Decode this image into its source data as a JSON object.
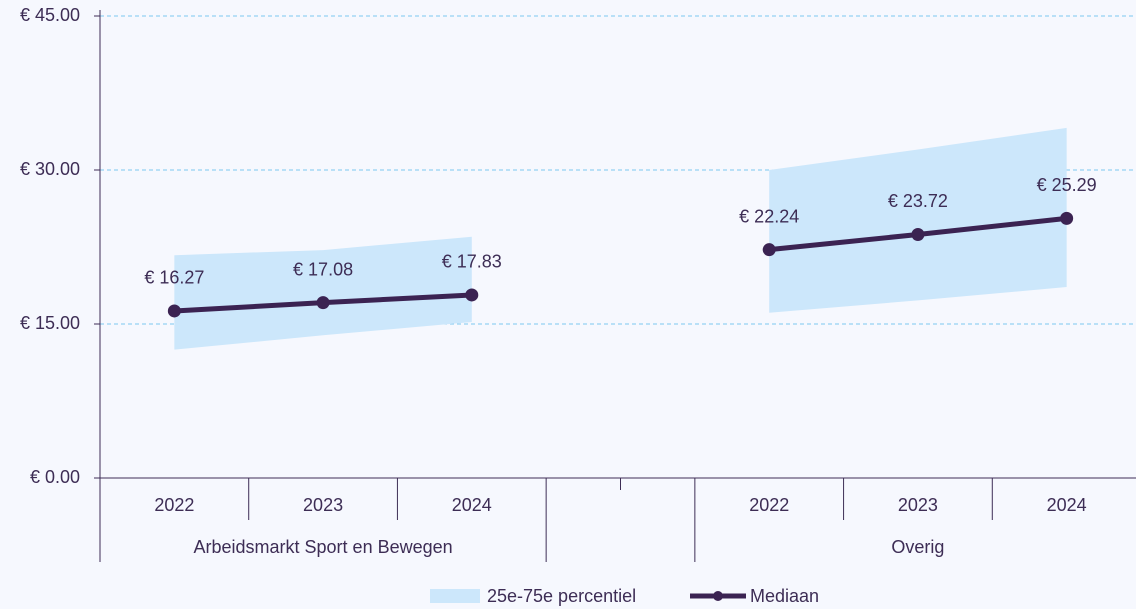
{
  "chart_data": {
    "type": "line",
    "categories": [
      "2022",
      "2023",
      "2024",
      null,
      "2022",
      "2023",
      "2024"
    ],
    "groups": [
      "Arbeidsmarkt Sport en Bewegen",
      "Overig"
    ],
    "ylim": [
      0,
      45
    ],
    "yticks": [
      {
        "value": 0,
        "label": "€ 0.00"
      },
      {
        "value": 15,
        "label": "€ 15.00"
      },
      {
        "value": 30,
        "label": "€ 30.00"
      },
      {
        "value": 45,
        "label": "€ 45.00"
      }
    ],
    "grid": true,
    "legend": "bottom",
    "band": {
      "name": "25e-75e percentiel",
      "color": "#cce7fb",
      "low": [
        12.5,
        13.9,
        15.2,
        null,
        16.1,
        17.3,
        18.6
      ],
      "high": [
        21.7,
        22.2,
        23.5,
        null,
        30.0,
        32.0,
        34.1
      ]
    },
    "series": [
      {
        "name": "Mediaan",
        "color": "#3b2352",
        "values": [
          16.27,
          17.08,
          17.83,
          null,
          22.24,
          23.72,
          25.29
        ],
        "value_labels": [
          "€ 16.27",
          "€ 17.08",
          "€ 17.83",
          null,
          "€ 22.24",
          "€ 23.72",
          "€ 25.29"
        ]
      }
    ]
  }
}
